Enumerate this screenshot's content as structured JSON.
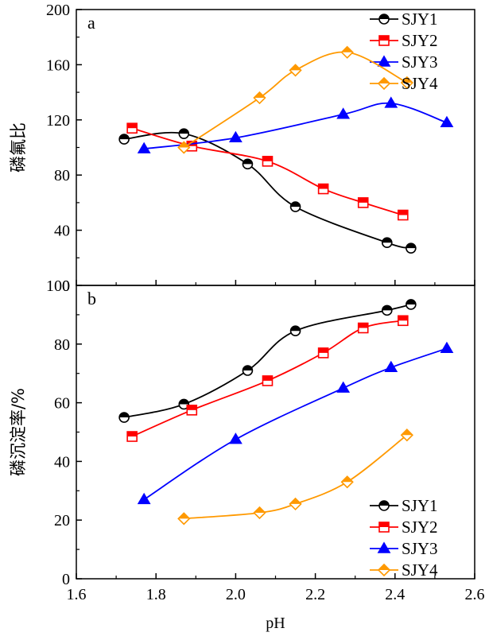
{
  "chart_data": [
    {
      "type": "line",
      "panel_label": "a",
      "ylabel": "磷氟比",
      "xlim": [
        1.6,
        2.6
      ],
      "ylim": [
        0,
        200
      ],
      "yticks": [
        0,
        40,
        80,
        120,
        160,
        200
      ],
      "legend_position": "top-right",
      "grid": false,
      "series": [
        {
          "name": "SJY1",
          "color": "#000000",
          "marker": "circle-half",
          "points": [
            [
              1.72,
              106
            ],
            [
              1.87,
              110
            ],
            [
              2.03,
              88
            ],
            [
              2.15,
              57
            ],
            [
              2.38,
              31
            ],
            [
              2.44,
              27
            ]
          ]
        },
        {
          "name": "SJY2",
          "color": "#ff0000",
          "marker": "square-half",
          "points": [
            [
              1.74,
              114
            ],
            [
              1.89,
              101
            ],
            [
              2.08,
              90
            ],
            [
              2.22,
              70
            ],
            [
              2.32,
              60
            ],
            [
              2.42,
              51
            ]
          ]
        },
        {
          "name": "SJY3",
          "color": "#0000ff",
          "marker": "triangle-half",
          "points": [
            [
              1.77,
              99
            ],
            [
              2.0,
              107
            ],
            [
              2.27,
              124
            ],
            [
              2.39,
              132
            ],
            [
              2.53,
              118
            ]
          ]
        },
        {
          "name": "SJY4",
          "color": "#ff9900",
          "marker": "diamond-half",
          "points": [
            [
              1.87,
              100
            ],
            [
              2.06,
              136
            ],
            [
              2.15,
              156
            ],
            [
              2.28,
              169
            ],
            [
              2.43,
              147
            ]
          ]
        }
      ]
    },
    {
      "type": "line",
      "panel_label": "b",
      "xlabel": "pH",
      "ylabel": "磷沉淀率/%",
      "xlim": [
        1.6,
        2.6
      ],
      "ylim": [
        0,
        100
      ],
      "xticks": [
        1.6,
        1.8,
        2.0,
        2.2,
        2.4,
        2.6
      ],
      "yticks": [
        0,
        20,
        40,
        60,
        80,
        100
      ],
      "legend_position": "bottom-right",
      "grid": false,
      "series": [
        {
          "name": "SJY1",
          "color": "#000000",
          "marker": "circle-half",
          "points": [
            [
              1.72,
              55
            ],
            [
              1.87,
              59.5
            ],
            [
              2.03,
              71
            ],
            [
              2.15,
              84.5
            ],
            [
              2.38,
              91.5
            ],
            [
              2.44,
              93.5
            ]
          ]
        },
        {
          "name": "SJY2",
          "color": "#ff0000",
          "marker": "square-half",
          "points": [
            [
              1.74,
              48.5
            ],
            [
              1.89,
              57.5
            ],
            [
              2.08,
              67.5
            ],
            [
              2.22,
              77
            ],
            [
              2.32,
              85.5
            ],
            [
              2.42,
              88
            ]
          ]
        },
        {
          "name": "SJY3",
          "color": "#0000ff",
          "marker": "triangle-half",
          "points": [
            [
              1.77,
              27
            ],
            [
              2.0,
              47.5
            ],
            [
              2.27,
              65
            ],
            [
              2.39,
              72
            ],
            [
              2.53,
              78.5
            ]
          ]
        },
        {
          "name": "SJY4",
          "color": "#ff9900",
          "marker": "diamond-half",
          "points": [
            [
              1.87,
              20.5
            ],
            [
              2.06,
              22.5
            ],
            [
              2.15,
              25.5
            ],
            [
              2.28,
              33
            ],
            [
              2.43,
              49
            ]
          ]
        }
      ]
    }
  ]
}
